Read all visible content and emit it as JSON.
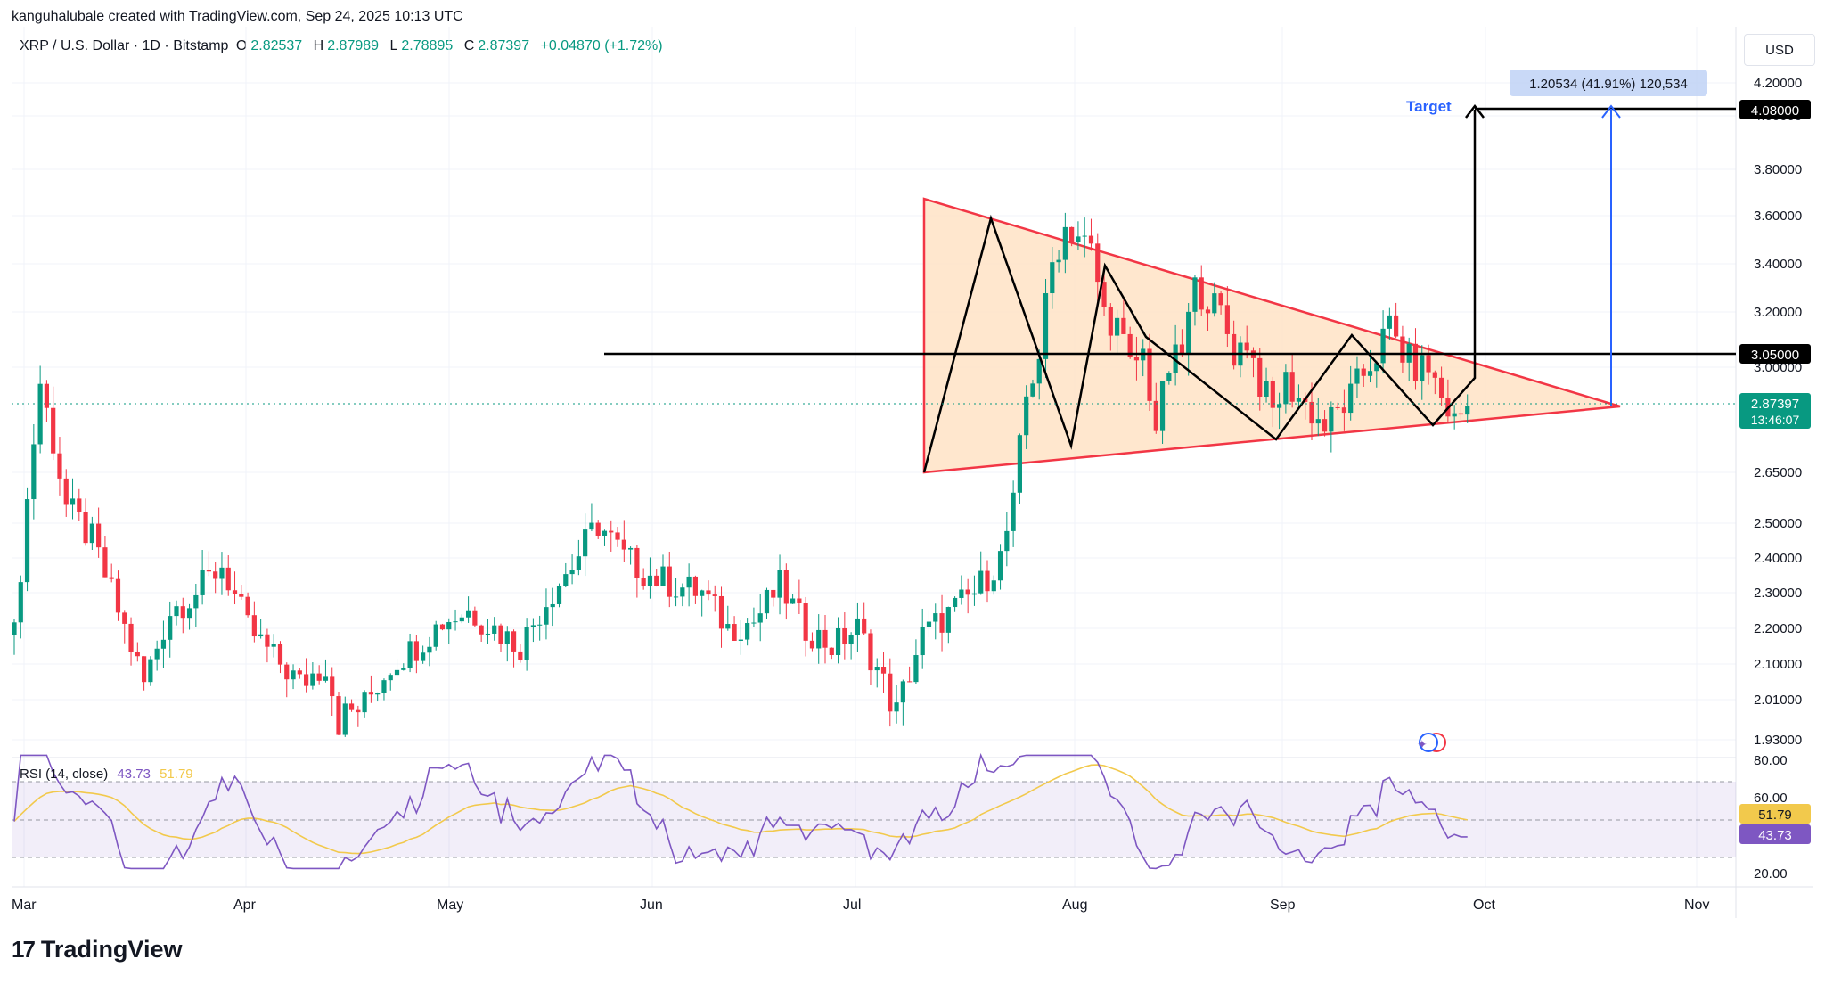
{
  "header": {
    "created_by": "kanguhalubale created with TradingView.com, Sep 24, 2025 10:13 UTC",
    "symbol": "XRP / U.S. Dollar · 1D · Bitstamp",
    "open_label": "O",
    "open": "2.82537",
    "high_label": "H",
    "high": "2.87989",
    "low_label": "L",
    "low": "2.78895",
    "close_label": "C",
    "close": "2.87397",
    "change": "+0.04870 (+1.72%)"
  },
  "currency_button": "USD",
  "price_axis_ticks": [
    "4.20000",
    "4.00000",
    "3.80000",
    "3.60000",
    "3.40000",
    "3.20000",
    "3.00000",
    "2.65000",
    "2.50000",
    "2.40000",
    "2.30000",
    "2.20000",
    "2.10000",
    "2.01000",
    "1.93000"
  ],
  "price_tags": {
    "target": "4.08000",
    "resistance": "3.05000",
    "last_price": "2.87397",
    "countdown": "13:46:07"
  },
  "annotations": {
    "target_label": "Target",
    "measure_box": "1.20534 (41.91%) 120,534"
  },
  "rsi": {
    "label": "RSI (14, close)",
    "value": "43.73",
    "ma_value": "51.79",
    "axis_ticks": [
      "80.00",
      "60.00",
      "40.00",
      "20.00"
    ],
    "line_color": "#7e57c2",
    "ma_color": "#f2c94c"
  },
  "time_axis": [
    "Mar",
    "Apr",
    "May",
    "Jun",
    "Jul",
    "Aug",
    "Sep",
    "Oct",
    "Nov"
  ],
  "footer": {
    "brand": "TradingView",
    "mark": "17"
  },
  "colors": {
    "up": "#089981",
    "down": "#f23645",
    "triangle_fill": "#ffe0c2",
    "triangle_stroke": "#f23645",
    "measure": "#2962ff"
  },
  "chart_data": {
    "type": "candlestick",
    "title": "XRP / U.S. Dollar · 1D · Bitstamp",
    "series": [
      {
        "name": "XRP / U.S. Dollar",
        "x": [
          "Mar",
          "Apr",
          "May",
          "Jun",
          "Jul",
          "Aug",
          "Sep",
          "Oct",
          "Nov"
        ],
        "monthly_close_approx": [
          2.17,
          2.08,
          2.22,
          2.15,
          2.2,
          3.05,
          2.8,
          2.87
        ]
      }
    ],
    "reference_lines": [
      {
        "label": "3.05000",
        "value": 3.05
      },
      {
        "label": "4.08000",
        "value": 4.08
      }
    ],
    "pattern": {
      "type": "symmetrical triangle",
      "top": 3.66,
      "bottom": 2.65,
      "apex": 2.87
    },
    "target": {
      "label": "Target",
      "value": 4.08,
      "move": "1.20534 (41.91%) 120,534"
    },
    "last": {
      "price": 2.87397,
      "open": 2.82537,
      "high": 2.87989,
      "low": 2.78895
    },
    "ylim": [
      1.9,
      4.25
    ],
    "indicator": {
      "name": "RSI (14, close)",
      "value": 43.73,
      "ma": 51.79,
      "ylim": [
        20,
        80
      ]
    }
  }
}
